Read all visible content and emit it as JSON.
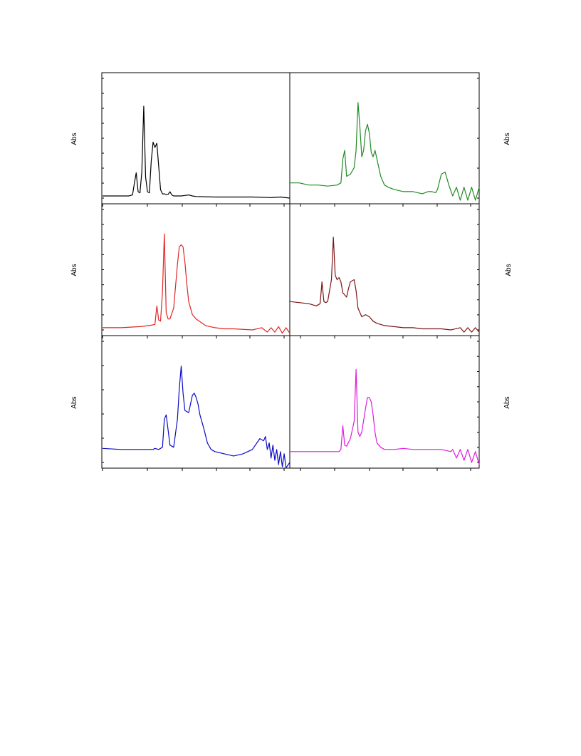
{
  "figure": {
    "ylabel_left": "Abs",
    "ylabel_right": "Abs"
  },
  "chart_data": [
    {
      "type": "line",
      "panel": "top-left",
      "color": "#000000",
      "ylabel": "Abs",
      "xlim": [
        0,
        100
      ],
      "ylim": [
        0,
        1
      ],
      "x": [
        0,
        5,
        10,
        14,
        16,
        17,
        18,
        19,
        20,
        21,
        22,
        23,
        24,
        25,
        26,
        27,
        28,
        29,
        30,
        31,
        32,
        33,
        34,
        35,
        36,
        37,
        38,
        40,
        42,
        44,
        46,
        48,
        50,
        60,
        70,
        80,
        90,
        95,
        100
      ],
      "y": [
        0.02,
        0.02,
        0.02,
        0.02,
        0.03,
        0.14,
        0.24,
        0.06,
        0.05,
        0.25,
        0.87,
        0.2,
        0.06,
        0.05,
        0.35,
        0.53,
        0.48,
        0.52,
        0.3,
        0.08,
        0.04,
        0.04,
        0.035,
        0.035,
        0.06,
        0.03,
        0.02,
        0.02,
        0.02,
        0.025,
        0.03,
        0.02,
        0.015,
        0.01,
        0.01,
        0.01,
        0.005,
        0.01,
        0.0
      ]
    },
    {
      "type": "line",
      "panel": "top-right",
      "color": "#228B22",
      "ylabel": "Abs",
      "xlim": [
        0,
        100
      ],
      "ylim": [
        0,
        1
      ],
      "x": [
        0,
        5,
        10,
        15,
        20,
        25,
        27,
        28,
        29,
        30,
        32,
        34,
        35,
        36,
        37,
        38,
        39,
        40,
        41,
        42,
        43,
        44,
        45,
        46,
        48,
        50,
        52,
        55,
        60,
        65,
        70,
        73,
        75,
        77,
        78,
        80,
        82,
        84,
        86,
        88,
        90,
        92,
        94,
        96,
        98,
        100
      ],
      "y": [
        0.14,
        0.14,
        0.12,
        0.12,
        0.11,
        0.12,
        0.14,
        0.36,
        0.44,
        0.2,
        0.22,
        0.28,
        0.44,
        0.88,
        0.66,
        0.38,
        0.44,
        0.62,
        0.68,
        0.6,
        0.42,
        0.38,
        0.44,
        0.36,
        0.2,
        0.12,
        0.1,
        0.08,
        0.06,
        0.06,
        0.04,
        0.06,
        0.06,
        0.05,
        0.08,
        0.22,
        0.24,
        0.12,
        0.02,
        0.1,
        -0.02,
        0.1,
        -0.02,
        0.1,
        -0.02,
        0.1
      ]
    },
    {
      "type": "line",
      "panel": "middle-left",
      "color": "#E32424",
      "ylabel": "Abs",
      "xlim": [
        0,
        100
      ],
      "ylim": [
        0,
        1
      ],
      "x": [
        0,
        10,
        20,
        25,
        28,
        29,
        30,
        31,
        32,
        33,
        34,
        35,
        36,
        38,
        40,
        41,
        42,
        43,
        44,
        45,
        46,
        48,
        50,
        55,
        60,
        65,
        70,
        80,
        85,
        88,
        90,
        92,
        94,
        96,
        98,
        100
      ],
      "y": [
        0.02,
        0.02,
        0.03,
        0.04,
        0.05,
        0.22,
        0.09,
        0.08,
        0.35,
        0.88,
        0.16,
        0.1,
        0.1,
        0.2,
        0.6,
        0.76,
        0.78,
        0.76,
        0.62,
        0.42,
        0.26,
        0.14,
        0.1,
        0.04,
        0.02,
        0.01,
        0.01,
        0.0,
        0.02,
        -0.02,
        0.02,
        -0.02,
        0.03,
        -0.03,
        0.02,
        -0.03
      ]
    },
    {
      "type": "line",
      "panel": "middle-right",
      "color": "#7B1414",
      "ylabel": "Abs",
      "xlim": [
        0,
        100
      ],
      "ylim": [
        0,
        1
      ],
      "x": [
        0,
        5,
        10,
        14,
        16,
        17,
        18,
        19,
        20,
        22,
        23,
        24,
        25,
        26,
        27,
        28,
        30,
        31,
        32,
        34,
        35,
        36,
        38,
        40,
        42,
        44,
        46,
        50,
        55,
        60,
        65,
        70,
        75,
        80,
        85,
        90,
        92,
        94,
        96,
        98,
        100
      ],
      "y": [
        0.26,
        0.25,
        0.24,
        0.22,
        0.24,
        0.44,
        0.26,
        0.25,
        0.26,
        0.46,
        0.85,
        0.5,
        0.46,
        0.48,
        0.44,
        0.34,
        0.3,
        0.38,
        0.44,
        0.46,
        0.36,
        0.2,
        0.12,
        0.14,
        0.12,
        0.08,
        0.06,
        0.04,
        0.03,
        0.02,
        0.02,
        0.01,
        0.01,
        0.01,
        0.0,
        0.02,
        -0.02,
        0.02,
        -0.02,
        0.02,
        -0.02
      ]
    },
    {
      "type": "line",
      "panel": "bottom-left",
      "color": "#0B0BC4",
      "ylabel": "Abs",
      "xlim": [
        0,
        100
      ],
      "ylim": [
        0,
        1
      ],
      "x": [
        0,
        10,
        20,
        27,
        28,
        30,
        32,
        33,
        34,
        35,
        36,
        38,
        40,
        41,
        42,
        43,
        44,
        46,
        48,
        49,
        50,
        51,
        52,
        54,
        56,
        58,
        60,
        65,
        70,
        75,
        80,
        84,
        86,
        87,
        88,
        89,
        90,
        91,
        92,
        93,
        94,
        95,
        96,
        97,
        98,
        100
      ],
      "y": [
        0.13,
        0.12,
        0.12,
        0.12,
        0.13,
        0.12,
        0.14,
        0.4,
        0.44,
        0.3,
        0.16,
        0.14,
        0.4,
        0.68,
        0.89,
        0.64,
        0.48,
        0.46,
        0.62,
        0.64,
        0.6,
        0.54,
        0.44,
        0.32,
        0.18,
        0.12,
        0.1,
        0.08,
        0.06,
        0.08,
        0.12,
        0.22,
        0.2,
        0.24,
        0.12,
        0.18,
        0.04,
        0.16,
        0.02,
        0.12,
        -0.02,
        0.1,
        -0.04,
        0.08,
        -0.05,
        0.0
      ]
    },
    {
      "type": "line",
      "panel": "bottom-right",
      "color": "#E01BE0",
      "ylabel": "Abs",
      "xlim": [
        0,
        100
      ],
      "ylim": [
        0,
        1
      ],
      "x": [
        0,
        10,
        20,
        26,
        27,
        28,
        29,
        30,
        32,
        34,
        35,
        36,
        37,
        38,
        40,
        41,
        42,
        43,
        44,
        45,
        46,
        48,
        50,
        55,
        60,
        65,
        70,
        75,
        80,
        85,
        86,
        88,
        90,
        92,
        94,
        96,
        98,
        100
      ],
      "y": [
        0.1,
        0.1,
        0.1,
        0.1,
        0.12,
        0.34,
        0.16,
        0.15,
        0.22,
        0.38,
        0.86,
        0.28,
        0.24,
        0.28,
        0.5,
        0.6,
        0.6,
        0.56,
        0.44,
        0.28,
        0.18,
        0.14,
        0.12,
        0.12,
        0.13,
        0.12,
        0.12,
        0.12,
        0.12,
        0.1,
        0.12,
        0.04,
        0.12,
        0.02,
        0.12,
        0.0,
        0.1,
        -0.02
      ]
    }
  ]
}
